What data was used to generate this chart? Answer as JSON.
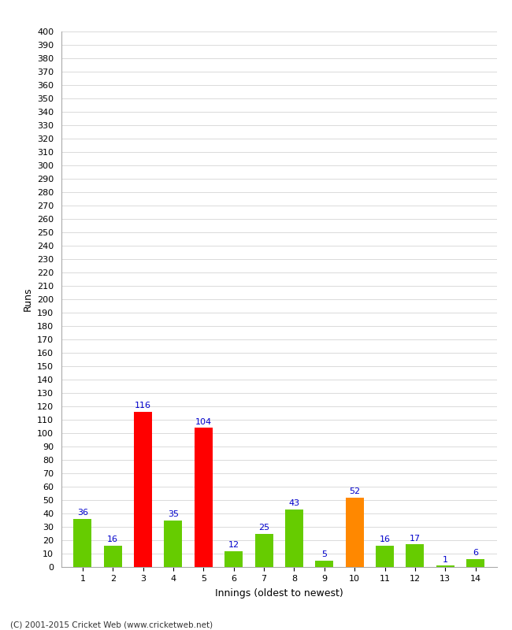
{
  "categories": [
    1,
    2,
    3,
    4,
    5,
    6,
    7,
    8,
    9,
    10,
    11,
    12,
    13,
    14
  ],
  "values": [
    36,
    16,
    116,
    35,
    104,
    12,
    25,
    43,
    5,
    52,
    16,
    17,
    1,
    6
  ],
  "bar_colors": [
    "#66cc00",
    "#66cc00",
    "#ff0000",
    "#66cc00",
    "#ff0000",
    "#66cc00",
    "#66cc00",
    "#66cc00",
    "#66cc00",
    "#ff8800",
    "#66cc00",
    "#66cc00",
    "#66cc00",
    "#66cc00"
  ],
  "ylabel": "Runs",
  "xlabel": "Innings (oldest to newest)",
  "ylim": [
    0,
    400
  ],
  "yticks": [
    0,
    10,
    20,
    30,
    40,
    50,
    60,
    70,
    80,
    90,
    100,
    110,
    120,
    130,
    140,
    150,
    160,
    170,
    180,
    190,
    200,
    210,
    220,
    230,
    240,
    250,
    260,
    270,
    280,
    290,
    300,
    310,
    320,
    330,
    340,
    350,
    360,
    370,
    380,
    390,
    400
  ],
  "label_color": "#0000cc",
  "background_color": "#ffffff",
  "grid_color": "#cccccc",
  "footer": "(C) 2001-2015 Cricket Web (www.cricketweb.net)"
}
